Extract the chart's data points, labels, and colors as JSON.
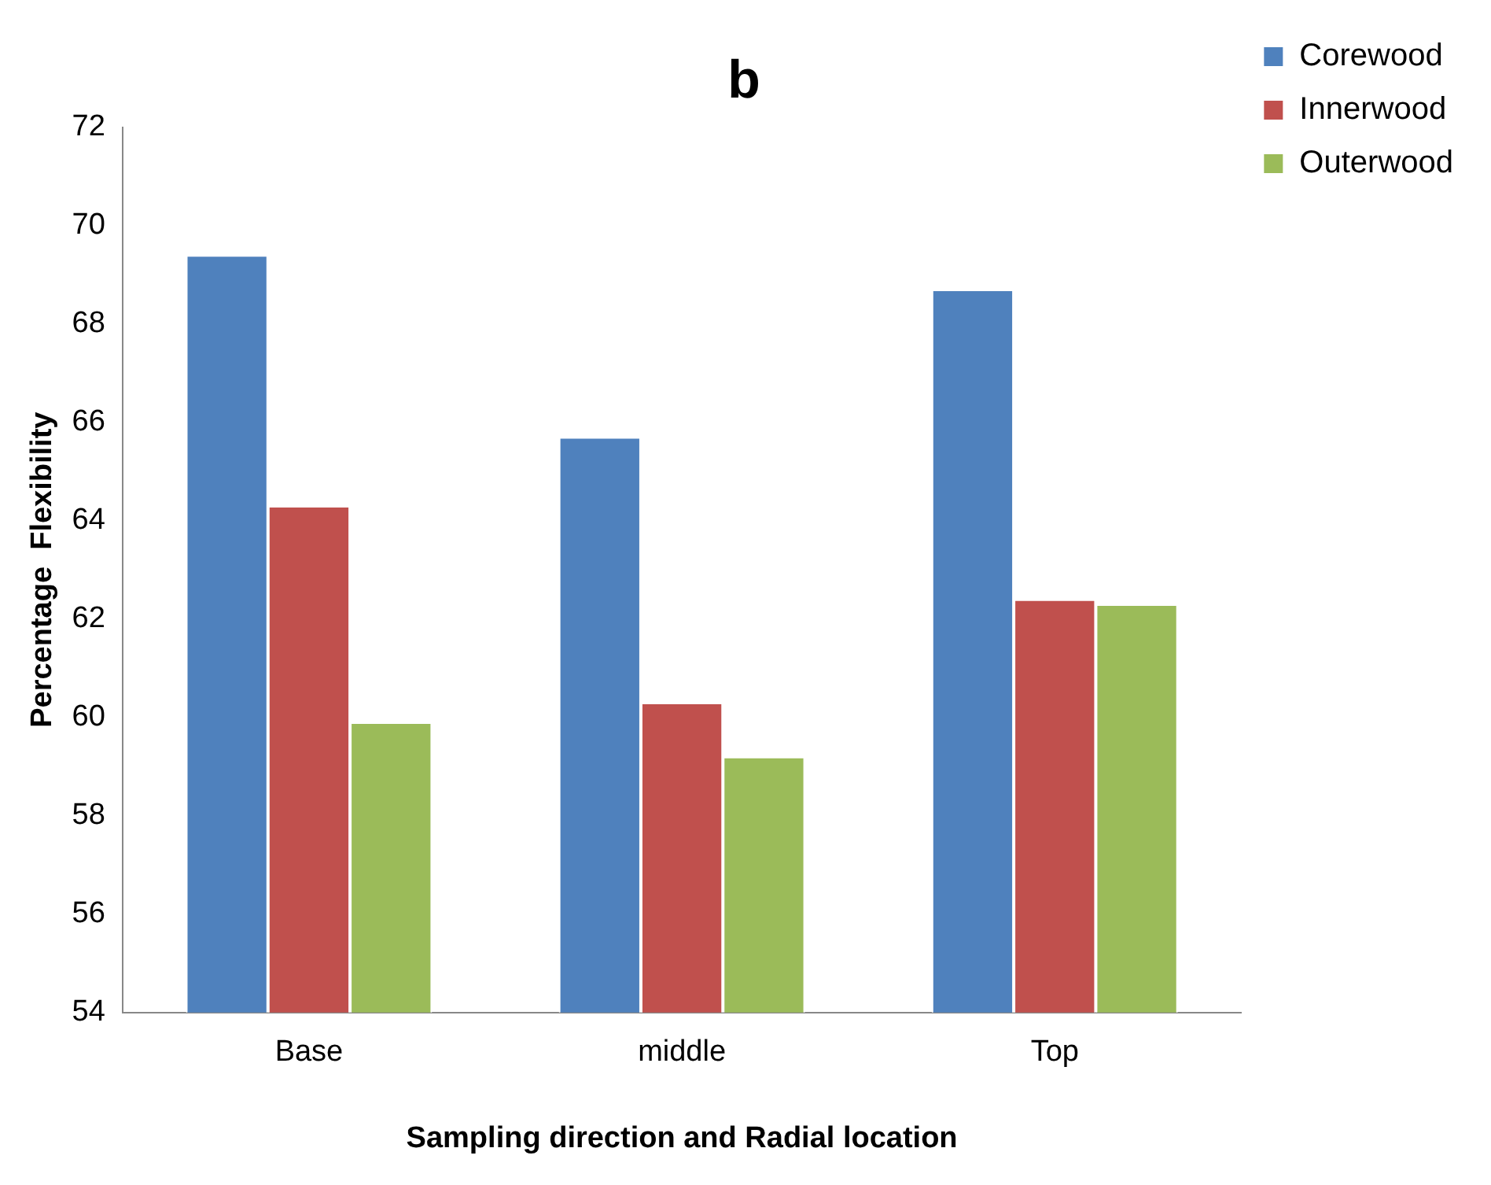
{
  "chart_data": {
    "type": "bar",
    "title": "b",
    "xlabel": "Sampling direction and Radial location",
    "ylabel": "Percentage  Flexibility",
    "categories": [
      "Base",
      "middle",
      "Top"
    ],
    "series": [
      {
        "name": "Corewood",
        "color": "#4f81bd",
        "values": [
          69.4,
          65.7,
          68.7
        ]
      },
      {
        "name": "Innerwood",
        "color": "#c0504d",
        "values": [
          64.3,
          60.3,
          62.4
        ]
      },
      {
        "name": "Outerwood",
        "color": "#9bbb59",
        "values": [
          59.9,
          59.2,
          62.3
        ]
      }
    ],
    "ylim": [
      54,
      72
    ],
    "yticks": [
      54,
      56,
      58,
      60,
      62,
      64,
      66,
      68,
      70,
      72
    ],
    "grid": false,
    "legend": "top right"
  }
}
